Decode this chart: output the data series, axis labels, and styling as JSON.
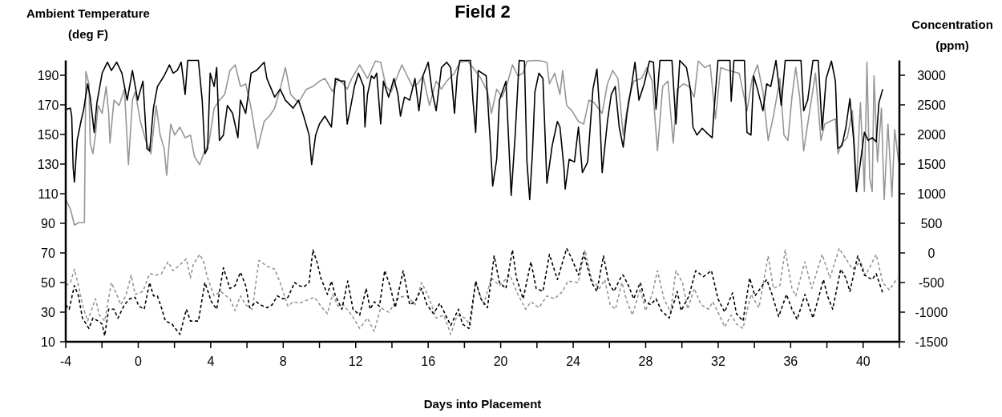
{
  "chart_data": {
    "type": "line",
    "title": "Field 2",
    "xlabel": "Days into Placement",
    "ylabel": "Ambient Temperature (deg F)",
    "y2label": "Concentration (ppm)",
    "xlim": [
      -4,
      42
    ],
    "xticks": [
      -4,
      {
        "value": -2,
        "label": null
      },
      0,
      {
        "value": 2,
        "label": null
      },
      4,
      {
        "value": 6,
        "label": null
      },
      8,
      {
        "value": 10,
        "label": null
      },
      12,
      {
        "value": 14,
        "label": null
      },
      16,
      {
        "value": 18,
        "label": null
      },
      20,
      {
        "value": 22,
        "label": null
      },
      24,
      {
        "value": 26,
        "label": null
      },
      28,
      {
        "value": 30,
        "label": null
      },
      32,
      {
        "value": 34,
        "label": null
      },
      36,
      {
        "value": 38,
        "label": null
      },
      40,
      {
        "value": 42,
        "label": null
      }
    ],
    "ylim": [
      10,
      200
    ],
    "yticks": [
      10,
      30,
      50,
      70,
      90,
      110,
      130,
      150,
      170,
      190
    ],
    "y2lim": [
      -1500,
      3250
    ],
    "y2ticks": [
      -1500,
      -1000,
      -500,
      0,
      500,
      1000,
      1500,
      2000,
      2500,
      3000
    ],
    "series": [
      {
        "color": "#969696",
        "axis": "y2",
        "line_style": "solid",
        "x": [
          -4,
          -3.74,
          -3.52,
          -3.3,
          -2.97,
          -2.89,
          -2.72,
          -2.65,
          -2.5,
          -2.36,
          -2.21,
          -1.99,
          -1.77,
          -1.63,
          -1.56,
          -1.34,
          -1.05,
          -0.76,
          -0.54,
          -0.32,
          -0.17,
          0.12,
          0.41,
          0.7,
          0.99,
          1.21,
          1.43,
          1.57,
          1.79,
          2.01,
          2.3,
          2.59,
          2.88,
          3.1,
          3.39,
          3.61,
          3.9,
          4.19,
          4.48,
          4.77,
          5.06,
          5.35,
          5.64,
          5.93,
          6.23,
          6.59,
          6.95,
          7.24,
          7.53,
          7.83,
          8.12,
          8.41,
          8.84,
          9.28,
          9.64,
          10.01,
          10.3,
          10.73,
          11.03,
          11.32,
          11.53,
          11.78,
          12.22,
          12.65,
          13.09,
          13.38,
          13.67,
          13.96,
          14.25,
          14.55,
          14.84,
          15.13,
          15.42,
          15.71,
          16.07,
          16.44,
          16.73,
          17.02,
          17.45,
          17.75,
          18.18,
          18.47,
          18.91,
          19.27,
          19.49,
          19.78,
          20.07,
          20.36,
          20.65,
          20.95,
          21.24,
          21.45,
          21.96,
          22.25,
          22.55,
          22.69,
          22.98,
          23.27,
          23.42,
          23.64,
          23.93,
          24.29,
          24.58,
          24.87,
          25.16,
          25.6,
          25.89,
          26.18,
          26.47,
          26.76,
          27.05,
          27.34,
          27.77,
          28.07,
          28.36,
          28.65,
          28.94,
          29.23,
          29.52,
          29.74,
          30.1,
          30.39,
          30.68,
          30.9,
          31.27,
          31.56,
          31.85,
          32.14,
          32.57,
          33.16,
          33.59,
          33.88,
          34.17,
          34.47,
          34.76,
          35.05,
          35.41,
          35.63,
          35.85,
          36.07,
          36.28,
          36.5,
          36.72,
          36.94,
          37.37,
          37.67,
          37.88,
          38.17,
          38.47,
          38.61,
          38.83,
          39.12,
          39.41,
          39.63,
          39.85,
          40.07,
          40.21,
          40.36,
          40.5,
          40.6,
          40.79,
          41.01,
          41.16,
          41.37,
          41.59,
          41.74,
          41.96
        ],
        "values": [
          900,
          740,
          470,
          510,
          510,
          3060,
          2855,
          1855,
          1675,
          1990,
          2490,
          2355,
          2810,
          2355,
          1855,
          2580,
          2490,
          2765,
          1490,
          2580,
          2720,
          2220,
          1900,
          1675,
          2490,
          1990,
          1765,
          1310,
          2175,
          1990,
          2125,
          1945,
          1990,
          1630,
          1490,
          1675,
          1855,
          2445,
          2580,
          2675,
          3080,
          3175,
          2810,
          2855,
          2445,
          1765,
          2220,
          2310,
          2445,
          2765,
          3130,
          2675,
          2535,
          2765,
          2810,
          2900,
          2945,
          2720,
          2945,
          2855,
          2765,
          2945,
          3175,
          2945,
          3240,
          3220,
          2810,
          2720,
          2945,
          3175,
          2990,
          2810,
          2855,
          2990,
          2490,
          2900,
          2765,
          2900,
          3035,
          3220,
          3240,
          3130,
          2945,
          2720,
          2355,
          2765,
          2630,
          2855,
          3175,
          2990,
          3035,
          3240,
          3250,
          3240,
          3220,
          2855,
          3035,
          2675,
          3080,
          2490,
          2400,
          2220,
          2175,
          2580,
          2535,
          2355,
          2855,
          3080,
          2945,
          1990,
          2580,
          2900,
          2945,
          3130,
          2900,
          1725,
          2810,
          2900,
          1855,
          2765,
          2855,
          2810,
          2630,
          3240,
          3130,
          3175,
          2265,
          3130,
          3080,
          3035,
          2400,
          2945,
          3175,
          2720,
          1900,
          2310,
          2945,
          1990,
          1900,
          2630,
          3130,
          2630,
          1720,
          2175,
          3035,
          1900,
          2175,
          2220,
          2265,
          1675,
          1855,
          1945,
          2400,
          1175,
          2535,
          1035,
          3220,
          1265,
          1035,
          2990,
          1535,
          2445,
          900,
          2175,
          945,
          2080,
          1535
        ]
      },
      {
        "color": "#000000",
        "axis": "y2",
        "line_style": "solid",
        "x": [
          -4,
          -3.74,
          -3.67,
          -3.59,
          -3.52,
          -3.37,
          -3.16,
          -3.01,
          -2.79,
          -2.65,
          -2.43,
          -2.28,
          -1.99,
          -1.7,
          -1.48,
          -1.19,
          -0.9,
          -0.61,
          -0.32,
          -0.03,
          0.26,
          0.48,
          0.63,
          0.84,
          1.06,
          1.43,
          1.72,
          1.93,
          2.15,
          2.37,
          2.59,
          2.73,
          3.32,
          3.53,
          3.68,
          3.83,
          3.97,
          4.19,
          4.33,
          4.48,
          4.7,
          4.92,
          5.21,
          5.5,
          5.64,
          5.93,
          6.23,
          6.52,
          6.95,
          7.1,
          7.53,
          7.83,
          8.12,
          8.55,
          8.84,
          9.13,
          9.43,
          9.57,
          9.79,
          10.0,
          10.3,
          10.66,
          10.88,
          11.17,
          11.39,
          11.53,
          11.71,
          11.93,
          12.15,
          12.44,
          12.51,
          12.65,
          12.87,
          13.02,
          13.16,
          13.38,
          13.53,
          13.82,
          14.11,
          14.33,
          14.47,
          14.69,
          14.98,
          15.27,
          15.49,
          15.71,
          16.0,
          16.22,
          16.44,
          16.73,
          17.02,
          17.24,
          17.45,
          17.6,
          17.75,
          18.33,
          18.47,
          18.62,
          18.76,
          19.2,
          19.42,
          19.56,
          19.78,
          19.93,
          20.29,
          20.58,
          20.8,
          21.02,
          21.31,
          21.45,
          21.6,
          21.75,
          21.89,
          22.11,
          22.33,
          22.55,
          22.84,
          23.13,
          23.27,
          23.49,
          23.56,
          23.78,
          24.07,
          24.29,
          24.51,
          24.8,
          25.09,
          25.31,
          25.45,
          25.6,
          25.89,
          26.1,
          26.32,
          26.54,
          26.76,
          26.97,
          27.19,
          27.41,
          27.63,
          27.92,
          28.21,
          28.43,
          28.57,
          28.79,
          29.45,
          29.67,
          29.88,
          30.25,
          30.47,
          30.61,
          30.83,
          31.12,
          31.41,
          31.67,
          31.77,
          31.99,
          32.65,
          32.72,
          32.87,
          33.45,
          33.59,
          33.81,
          33.96,
          34.17,
          34.47,
          34.68,
          34.9,
          35.19,
          35.48,
          35.7,
          36.57,
          36.72,
          36.94,
          37.23,
          37.52,
          37.74,
          37.96,
          38.25,
          38.47,
          38.61,
          38.83,
          39.05,
          39.27,
          39.48,
          39.63,
          39.85,
          40.07,
          40.28,
          40.5,
          40.72,
          40.87,
          41.08
        ],
        "values": [
          2420,
          2445,
          2310,
          1445,
          1195,
          1900,
          2220,
          2420,
          2855,
          2630,
          2035,
          2535,
          3035,
          3220,
          3080,
          3220,
          3035,
          2580,
          3080,
          2580,
          2900,
          1765,
          1720,
          2445,
          2810,
          2990,
          3175,
          3035,
          3080,
          3220,
          2675,
          3250,
          3250,
          2580,
          1675,
          1765,
          3035,
          2810,
          3130,
          1900,
          1990,
          2490,
          2355,
          1945,
          2580,
          2355,
          3035,
          3080,
          3220,
          2945,
          2630,
          2765,
          2580,
          2445,
          2580,
          2310,
          1990,
          1490,
          1990,
          2175,
          2310,
          2125,
          2945,
          2900,
          2900,
          2175,
          2445,
          2810,
          3035,
          2810,
          2125,
          2675,
          2990,
          2945,
          3035,
          2175,
          2900,
          2630,
          2945,
          2675,
          2310,
          2630,
          2580,
          2945,
          2400,
          2990,
          3220,
          2720,
          2400,
          3130,
          3220,
          3130,
          2355,
          2990,
          3250,
          3250,
          2580,
          2035,
          3080,
          2990,
          1900,
          1130,
          1580,
          2580,
          2900,
          970,
          1990,
          3250,
          3240,
          1535,
          900,
          1675,
          2720,
          3035,
          2945,
          1175,
          1810,
          2220,
          2125,
          1445,
          1080,
          1580,
          1535,
          2125,
          1355,
          1535,
          2765,
          3105,
          2445,
          1355,
          2220,
          2675,
          2810,
          2125,
          1785,
          2355,
          2765,
          3220,
          2580,
          2855,
          3240,
          3220,
          2425,
          3250,
          3250,
          2175,
          3250,
          3130,
          2765,
          2125,
          1990,
          2105,
          2015,
          1945,
          2400,
          3250,
          3250,
          2560,
          3250,
          3250,
          2035,
          1990,
          2990,
          2765,
          2400,
          2855,
          2810,
          3250,
          2490,
          3250,
          3250,
          2400,
          2580,
          3250,
          3250,
          2080,
          2945,
          3240,
          2900,
          1765,
          1810,
          2125,
          2605,
          1900,
          1035,
          1535,
          2035,
          1900,
          1945,
          1875,
          2535,
          2765
        ]
      },
      {
        "color": "#969696",
        "line_style": "dashed",
        "x": [
          -4,
          -3.74,
          -3.52,
          -3.3,
          -3.08,
          -2.79,
          -2.36,
          -2.14,
          -1.85,
          -1.48,
          -1.19,
          -0.97,
          -0.68,
          -0.39,
          -0.17,
          0.26,
          0.63,
          0.99,
          1.28,
          1.64,
          1.93,
          2.3,
          2.66,
          2.88,
          3.03,
          3.39,
          3.61,
          3.83,
          4.19,
          4.55,
          5.06,
          5.35,
          5.64,
          5.93,
          6.3,
          6.66,
          7.1,
          7.53,
          7.83,
          8.26,
          8.55,
          8.92,
          9.28,
          9.72,
          10.15,
          10.44,
          10.73,
          11.03,
          11.32,
          11.78,
          12.22,
          12.65,
          13.02,
          13.38,
          13.82,
          14.4,
          14.84,
          15.27,
          15.64,
          16.0,
          16.44,
          16.87,
          17.24,
          17.6,
          18.04,
          18.33,
          18.62,
          19.05,
          19.49,
          19.93,
          20.51,
          20.95,
          21.38,
          21.67,
          22.11,
          22.55,
          22.98,
          23.42,
          23.71,
          24.29,
          24.65,
          25.02,
          25.45,
          25.74,
          26.04,
          26.33,
          26.69,
          26.97,
          27.27,
          27.7,
          27.99,
          28.36,
          28.65,
          29.01,
          29.37,
          29.67,
          30.03,
          30.32,
          30.68,
          31.05,
          31.48,
          31.7,
          32.07,
          32.36,
          32.72,
          33.01,
          33.37,
          33.81,
          34.25,
          34.76,
          35.05,
          35.41,
          35.7,
          36.07,
          36.28,
          36.79,
          37.16,
          37.74,
          38.17,
          38.68,
          39.05,
          39.41,
          39.85,
          40.14,
          40.72,
          41.08,
          41.45,
          41.89
        ],
        "values": [
          48,
          50,
          59,
          48,
          35,
          24,
          39,
          28,
          24,
          50,
          42,
          35,
          41,
          55,
          42,
          44,
          56,
          55,
          56,
          64,
          58,
          62,
          66,
          53,
          62,
          69,
          64,
          53,
          41,
          44,
          39,
          31,
          41,
          35,
          32,
          65,
          61,
          59,
          50,
          34,
          37,
          36,
          38,
          40,
          33,
          29,
          42,
          34,
          35,
          28,
          19,
          26,
          17,
          33,
          30,
          40,
          41,
          35,
          50,
          41,
          26,
          28,
          15,
          28,
          26,
          21,
          50,
          35,
          53,
          48,
          55,
          42,
          32,
          37,
          33,
          41,
          39,
          44,
          51,
          50,
          72,
          52,
          46,
          52,
          35,
          32,
          50,
          37,
          28,
          46,
          31,
          42,
          58,
          39,
          30,
          58,
          50,
          32,
          46,
          35,
          32,
          37,
          28,
          20,
          28,
          22,
          19,
          42,
          33,
          68,
          46,
          48,
          72,
          46,
          41,
          64,
          46,
          69,
          53,
          73,
          66,
          59,
          64,
          55,
          69,
          50,
          45,
          53
        ]
      },
      {
        "color": "#000000",
        "line_style": "dashed",
        "x": [
          -4,
          -3.81,
          -3.52,
          -3.3,
          -3.08,
          -2.72,
          -2.5,
          -2.21,
          -1.99,
          -1.85,
          -1.63,
          -1.34,
          -1.12,
          -0.76,
          -0.47,
          -0.17,
          0.04,
          0.33,
          0.63,
          0.84,
          1.06,
          1.28,
          1.5,
          1.86,
          2.3,
          2.66,
          2.88,
          3.32,
          3.68,
          4.04,
          4.33,
          4.7,
          5.06,
          5.35,
          5.64,
          5.93,
          6.15,
          6.52,
          6.73,
          7.1,
          7.39,
          7.68,
          7.97,
          8.26,
          8.63,
          8.84,
          9.13,
          9.43,
          9.64,
          9.86,
          10.08,
          10.44,
          10.66,
          10.88,
          11.24,
          11.56,
          11.85,
          12.22,
          12.58,
          12.8,
          13.02,
          13.31,
          13.6,
          13.89,
          14.18,
          14.62,
          14.98,
          15.27,
          15.64,
          15.93,
          16.29,
          16.65,
          17.24,
          17.67,
          17.89,
          18.25,
          18.62,
          18.91,
          19.27,
          19.64,
          19.93,
          20.29,
          20.65,
          20.87,
          21.24,
          21.67,
          21.96,
          22.33,
          22.69,
          23.13,
          23.64,
          23.93,
          24.29,
          24.58,
          25.02,
          25.31,
          25.67,
          25.96,
          26.25,
          26.69,
          26.76,
          27.05,
          27.34,
          27.7,
          27.99,
          28.28,
          28.57,
          28.87,
          29.3,
          29.74,
          29.96,
          30.39,
          30.76,
          31.19,
          31.63,
          31.99,
          32.36,
          32.79,
          33.01,
          33.37,
          33.74,
          34.03,
          34.68,
          34.97,
          35.34,
          35.77,
          36.07,
          36.36,
          36.79,
          37.23,
          37.81,
          38.03,
          38.32,
          38.76,
          39.05,
          39.27,
          39.7,
          40.07,
          40.5,
          40.72,
          41.08
        ],
        "values": [
          35,
          32,
          48,
          41,
          26,
          19,
          26,
          24,
          22,
          14,
          32,
          32,
          26,
          35,
          39,
          40,
          34,
          32,
          50,
          41,
          41,
          33,
          24,
          22,
          15,
          32,
          24,
          24,
          50,
          37,
          32,
          60,
          46,
          48,
          57,
          48,
          33,
          37,
          35,
          33,
          35,
          41,
          39,
          40,
          50,
          48,
          47,
          50,
          72,
          64,
          53,
          42,
          51,
          41,
          32,
          51,
          32,
          28,
          46,
          32,
          37,
          34,
          58,
          48,
          33,
          58,
          35,
          37,
          46,
          35,
          29,
          36,
          21,
          32,
          22,
          19,
          51,
          39,
          33,
          68,
          50,
          46,
          72,
          53,
          39,
          64,
          46,
          44,
          69,
          52,
          73,
          66,
          55,
          70,
          50,
          44,
          68,
          50,
          44,
          55,
          55,
          48,
          39,
          50,
          37,
          35,
          39,
          31,
          26,
          44,
          31,
          41,
          58,
          54,
          58,
          39,
          30,
          43,
          29,
          24,
          53,
          41,
          52,
          42,
          27,
          42,
          32,
          25,
          42,
          26,
          52,
          41,
          32,
          59,
          53,
          44,
          68,
          55,
          52,
          56,
          43
        ]
      }
    ]
  }
}
